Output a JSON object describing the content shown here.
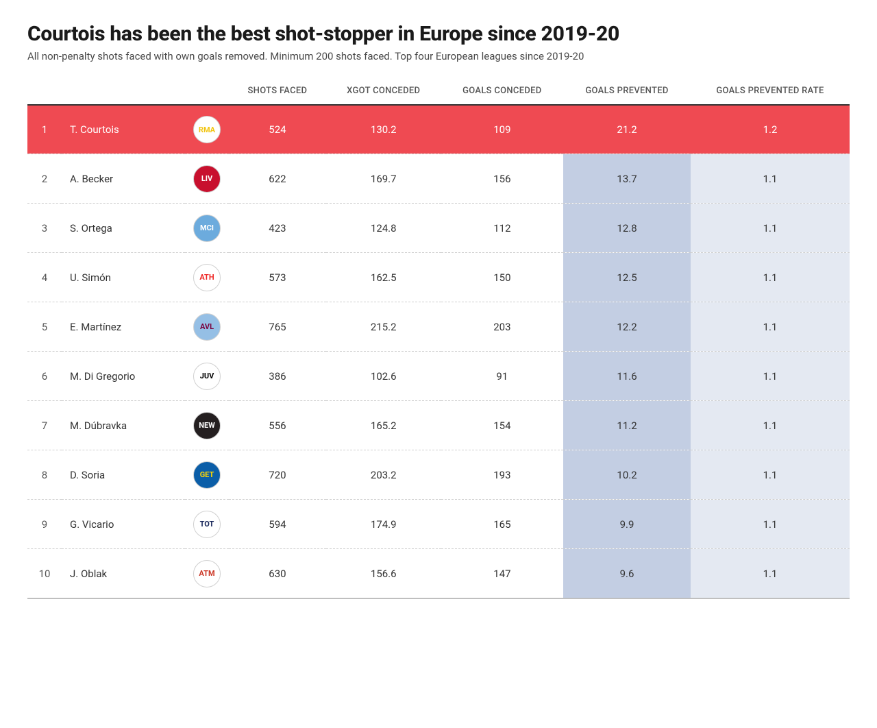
{
  "title": "Courtois has been the best shot-stopper in Europe since 2019-20",
  "subtitle": "All non-penalty shots faced with own goals removed. Minimum 200 shots faced. Top four European leagues since 2019-20",
  "table": {
    "type": "table",
    "columns": {
      "rank": "",
      "player": "",
      "crest": "",
      "shots_faced": "SHOTS FACED",
      "xgot_conceded": "XGOT CONCEDED",
      "goals_conceded": "GOALS CONCEDED",
      "goals_prevented": "GOALS PREVENTED",
      "goals_prevented_rate": "GOALS PREVENTED RATE"
    },
    "highlight_row_index": 0,
    "highlight_row_color": "#ef4a52",
    "highlight_text_color": "#ffffff",
    "shaded_columns": {
      "goals_prevented": "#c3cee3",
      "goals_prevented_rate": "#e4e9f2"
    },
    "row_divider": {
      "style": "dashed",
      "color": "#cfcfcf"
    },
    "header_border_color": "#333333",
    "footer_border_color": "#bfbfbf",
    "background_color": "#ffffff",
    "font": {
      "family": "system-ui",
      "title_size_pt": 23,
      "subtitle_size_pt": 11,
      "header_size_pt": 10,
      "body_size_pt": 11
    },
    "rows": [
      {
        "rank": "1",
        "player": "T. Courtois",
        "crest": {
          "abbr": "RMA",
          "bg": "#ffffff",
          "fg": "#f1c40f"
        },
        "shots_faced": "524",
        "xgot_conceded": "130.2",
        "goals_conceded": "109",
        "goals_prevented": "21.2",
        "goals_prevented_rate": "1.2"
      },
      {
        "rank": "2",
        "player": "A. Becker",
        "crest": {
          "abbr": "LIV",
          "bg": "#c8102e",
          "fg": "#ffffff"
        },
        "shots_faced": "622",
        "xgot_conceded": "169.7",
        "goals_conceded": "156",
        "goals_prevented": "13.7",
        "goals_prevented_rate": "1.1"
      },
      {
        "rank": "3",
        "player": "S. Ortega",
        "crest": {
          "abbr": "MCI",
          "bg": "#6cabdd",
          "fg": "#ffffff"
        },
        "shots_faced": "423",
        "xgot_conceded": "124.8",
        "goals_conceded": "112",
        "goals_prevented": "12.8",
        "goals_prevented_rate": "1.1"
      },
      {
        "rank": "4",
        "player": "U. Simón",
        "crest": {
          "abbr": "ATH",
          "bg": "#ffffff",
          "fg": "#ee2523"
        },
        "shots_faced": "573",
        "xgot_conceded": "162.5",
        "goals_conceded": "150",
        "goals_prevented": "12.5",
        "goals_prevented_rate": "1.1"
      },
      {
        "rank": "5",
        "player": "E. Martínez",
        "crest": {
          "abbr": "AVL",
          "bg": "#95bfe5",
          "fg": "#7a003c"
        },
        "shots_faced": "765",
        "xgot_conceded": "215.2",
        "goals_conceded": "203",
        "goals_prevented": "12.2",
        "goals_prevented_rate": "1.1"
      },
      {
        "rank": "6",
        "player": "M. Di Gregorio",
        "crest": {
          "abbr": "JUV",
          "bg": "#ffffff",
          "fg": "#000000"
        },
        "shots_faced": "386",
        "xgot_conceded": "102.6",
        "goals_conceded": "91",
        "goals_prevented": "11.6",
        "goals_prevented_rate": "1.1"
      },
      {
        "rank": "7",
        "player": "M. Dúbravka",
        "crest": {
          "abbr": "NEW",
          "bg": "#241f20",
          "fg": "#ffffff"
        },
        "shots_faced": "556",
        "xgot_conceded": "165.2",
        "goals_conceded": "154",
        "goals_prevented": "11.2",
        "goals_prevented_rate": "1.1"
      },
      {
        "rank": "8",
        "player": "D. Soria",
        "crest": {
          "abbr": "GET",
          "bg": "#0b5ea8",
          "fg": "#ffd600"
        },
        "shots_faced": "720",
        "xgot_conceded": "203.2",
        "goals_conceded": "193",
        "goals_prevented": "10.2",
        "goals_prevented_rate": "1.1"
      },
      {
        "rank": "9",
        "player": "G. Vicario",
        "crest": {
          "abbr": "TOT",
          "bg": "#ffffff",
          "fg": "#132257"
        },
        "shots_faced": "594",
        "xgot_conceded": "174.9",
        "goals_conceded": "165",
        "goals_prevented": "9.9",
        "goals_prevented_rate": "1.1"
      },
      {
        "rank": "10",
        "player": "J. Oblak",
        "crest": {
          "abbr": "ATM",
          "bg": "#ffffff",
          "fg": "#cb3524"
        },
        "shots_faced": "630",
        "xgot_conceded": "156.6",
        "goals_conceded": "147",
        "goals_prevented": "9.6",
        "goals_prevented_rate": "1.1"
      }
    ]
  }
}
